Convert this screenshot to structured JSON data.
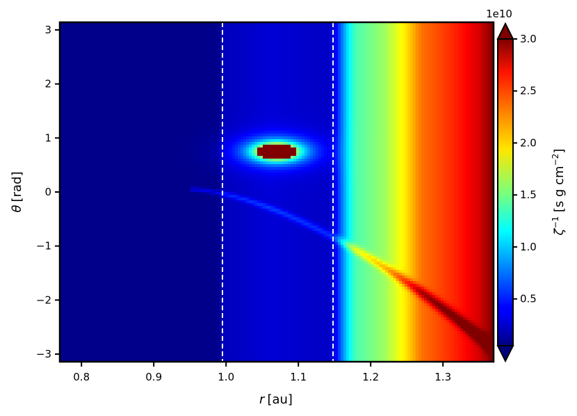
{
  "chart_data": {
    "type": "heatmap",
    "title": "",
    "xlabel": {
      "symbol": "r",
      "unit": "[au]"
    },
    "ylabel": {
      "symbol": "θ",
      "unit": "[rad]"
    },
    "xlim": [
      0.77,
      1.37
    ],
    "ylim": [
      -3.14159,
      3.14159
    ],
    "x_ticks": [
      {
        "value": 0.8,
        "label": "0.8"
      },
      {
        "value": 0.9,
        "label": "0.9"
      },
      {
        "value": 1.0,
        "label": "1.0"
      },
      {
        "value": 1.1,
        "label": "1.1"
      },
      {
        "value": 1.2,
        "label": "1.2"
      },
      {
        "value": 1.3,
        "label": "1.3"
      }
    ],
    "y_ticks": [
      {
        "value": 3,
        "label": "3"
      },
      {
        "value": 2,
        "label": "2"
      },
      {
        "value": 1,
        "label": "1"
      },
      {
        "value": 0,
        "label": "0"
      },
      {
        "value": -1,
        "label": "−1"
      },
      {
        "value": -2,
        "label": "−2"
      },
      {
        "value": -3,
        "label": "−3"
      }
    ],
    "vlines": [
      {
        "x": 0.995,
        "style": "dashed",
        "color": "#ffffff"
      },
      {
        "x": 1.148,
        "style": "dashed",
        "color": "#ffffff"
      }
    ],
    "colorbar": {
      "colormap": "jet",
      "vmin": 0.05,
      "vmax": 3.0,
      "extend": "both",
      "offset_label": "1e10",
      "label": {
        "symbol": "ζ",
        "sup": "−1",
        "unit_pre": " [s g cm",
        "unit_sup": "−2",
        "unit_post": "]"
      },
      "ticks": [
        {
          "value": 0.5,
          "label": "0.5"
        },
        {
          "value": 1.0,
          "label": "1.0"
        },
        {
          "value": 1.5,
          "label": "1.5"
        },
        {
          "value": 2.0,
          "label": "2.0"
        },
        {
          "value": 2.5,
          "label": "2.5"
        },
        {
          "value": 3.0,
          "label": "3.0"
        }
      ]
    },
    "radial_profile": [
      {
        "r": 0.77,
        "v": 0.08
      },
      {
        "r": 0.99,
        "v": 0.08
      },
      {
        "r": 0.995,
        "v": 0.22
      },
      {
        "r": 1.06,
        "v": 0.3
      },
      {
        "r": 1.14,
        "v": 0.25
      },
      {
        "r": 1.15,
        "v": 0.33
      },
      {
        "r": 1.16,
        "v": 0.75
      },
      {
        "r": 1.17,
        "v": 1.15
      },
      {
        "r": 1.18,
        "v": 1.38
      },
      {
        "r": 1.22,
        "v": 1.62
      },
      {
        "r": 1.25,
        "v": 1.98
      },
      {
        "r": 1.27,
        "v": 2.3
      },
      {
        "r": 1.32,
        "v": 2.55
      },
      {
        "r": 1.35,
        "v": 2.75
      },
      {
        "r": 1.37,
        "v": 3.0
      }
    ],
    "features": [
      {
        "kind": "vortex",
        "r": 1.07,
        "theta": 0.75,
        "dr": 0.028,
        "dtheta": 0.15,
        "peak": 3.0
      },
      {
        "kind": "spiral",
        "r_start": 0.95,
        "r_end": 1.37,
        "theta_start": 0.05,
        "theta_end": -2.9,
        "contrast": 1.15
      }
    ]
  }
}
